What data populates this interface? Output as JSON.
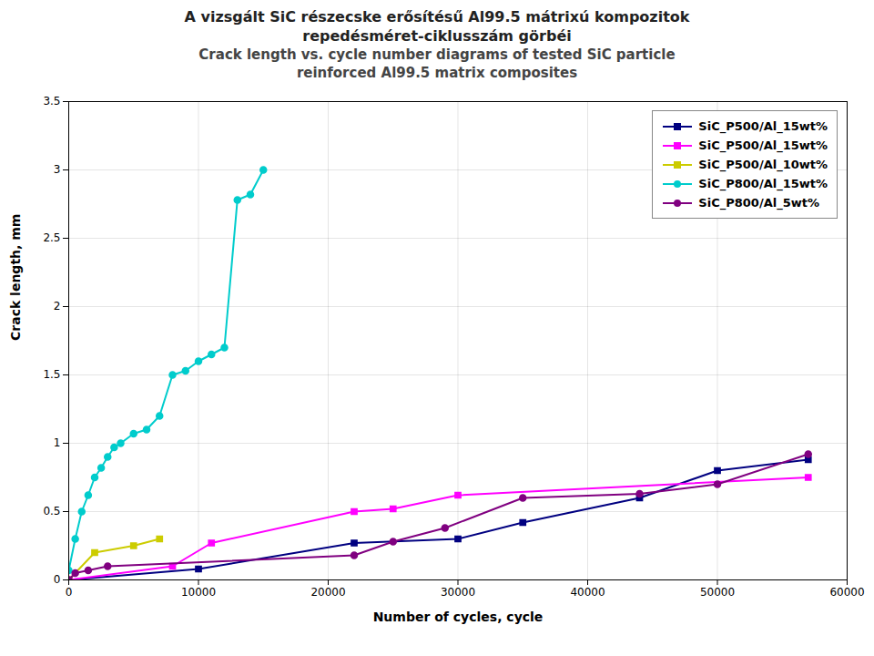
{
  "chart_data": {
    "type": "line",
    "title": [
      "A vizsgált SiC részecske erősítésű Al99.5 mátrixú kompozitok",
      "repedésméret-ciklusszám görbéi"
    ],
    "subtitle": [
      "Crack length vs. cycle number diagrams of tested SiC particle",
      "reinforced Al99.5 matrix composites"
    ],
    "x_label": "Number of cycles, cycle",
    "y_label": "Crack length, mm",
    "xlim": [
      0,
      60000
    ],
    "ylim": [
      0,
      3.5
    ],
    "xticks": [
      0,
      10000,
      20000,
      30000,
      40000,
      50000,
      60000
    ],
    "yticks": [
      0,
      0.5,
      1.0,
      1.5,
      2.0,
      2.5,
      3.0,
      3.5
    ],
    "grid": true,
    "legend": "upper right",
    "series": [
      {
        "name": "SiC_P500/Al_15wt%",
        "color": "#000080",
        "marker": "square",
        "x": [
          0,
          10000,
          22000,
          30000,
          35000,
          44000,
          50000,
          57000
        ],
        "values": [
          0,
          0.08,
          0.27,
          0.3,
          0.42,
          0.6,
          0.8,
          0.88
        ]
      },
      {
        "name": "SiC_P500/Al_15wt%",
        "color": "#ff00ff",
        "marker": "square",
        "x": [
          0,
          8000,
          11000,
          22000,
          25000,
          30000,
          57000
        ],
        "values": [
          0,
          0.1,
          0.27,
          0.5,
          0.52,
          0.62,
          0.75
        ]
      },
      {
        "name": "SiC_P500/Al_10wt%",
        "color": "#cccc00",
        "marker": "square",
        "x": [
          0,
          2000,
          5000,
          7000
        ],
        "values": [
          0,
          0.2,
          0.25,
          0.3
        ]
      },
      {
        "name": "SiC_P800/Al_15wt%",
        "color": "#00cccc",
        "marker": "circle",
        "x": [
          0,
          500,
          1000,
          1500,
          2000,
          2500,
          3000,
          3500,
          4000,
          5000,
          6000,
          7000,
          8000,
          9000,
          10000,
          11000,
          12000,
          13000,
          14000,
          15000
        ],
        "values": [
          0.07,
          0.3,
          0.5,
          0.62,
          0.75,
          0.82,
          0.9,
          0.97,
          1.0,
          1.07,
          1.1,
          1.2,
          1.5,
          1.53,
          1.6,
          1.65,
          1.7,
          2.78,
          2.82,
          3.0
        ]
      },
      {
        "name": "SiC_P800/Al_5wt%",
        "color": "#800080",
        "marker": "circle",
        "x": [
          0,
          500,
          1500,
          3000,
          22000,
          25000,
          29000,
          35000,
          44000,
          50000,
          57000
        ],
        "values": [
          0,
          0.05,
          0.07,
          0.1,
          0.18,
          0.28,
          0.38,
          0.6,
          0.63,
          0.7,
          0.92
        ]
      }
    ]
  }
}
